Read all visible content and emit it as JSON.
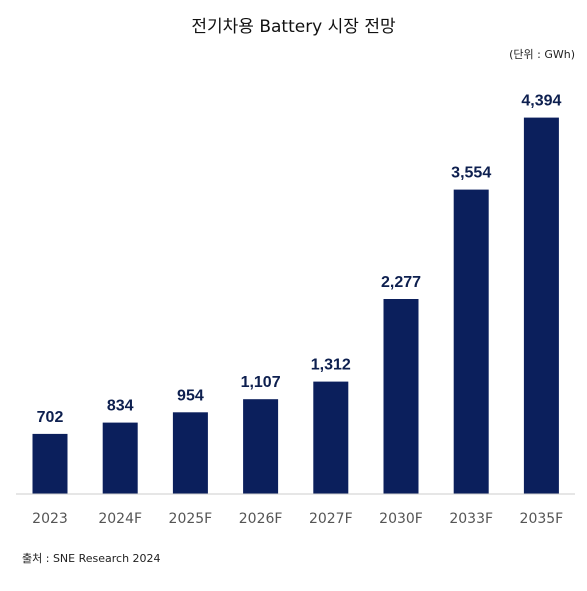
{
  "chart_data": {
    "type": "bar",
    "title": "전기차용 Battery 시장 전망",
    "unit": "(단위 : GWh)",
    "source": "출처 : SNE Research 2024",
    "categories": [
      "2023",
      "2024F",
      "2025F",
      "2026F",
      "2027F",
      "2030F",
      "2033F",
      "2035F"
    ],
    "values": [
      702,
      834,
      954,
      1107,
      1312,
      2277,
      3554,
      4394
    ],
    "value_labels": [
      "702",
      "834",
      "954",
      "1,107",
      "1,312",
      "2,277",
      "3,554",
      "4,394"
    ],
    "ylim": [
      0,
      4600
    ],
    "grid": false,
    "bar_color": "#0b1f5c"
  }
}
